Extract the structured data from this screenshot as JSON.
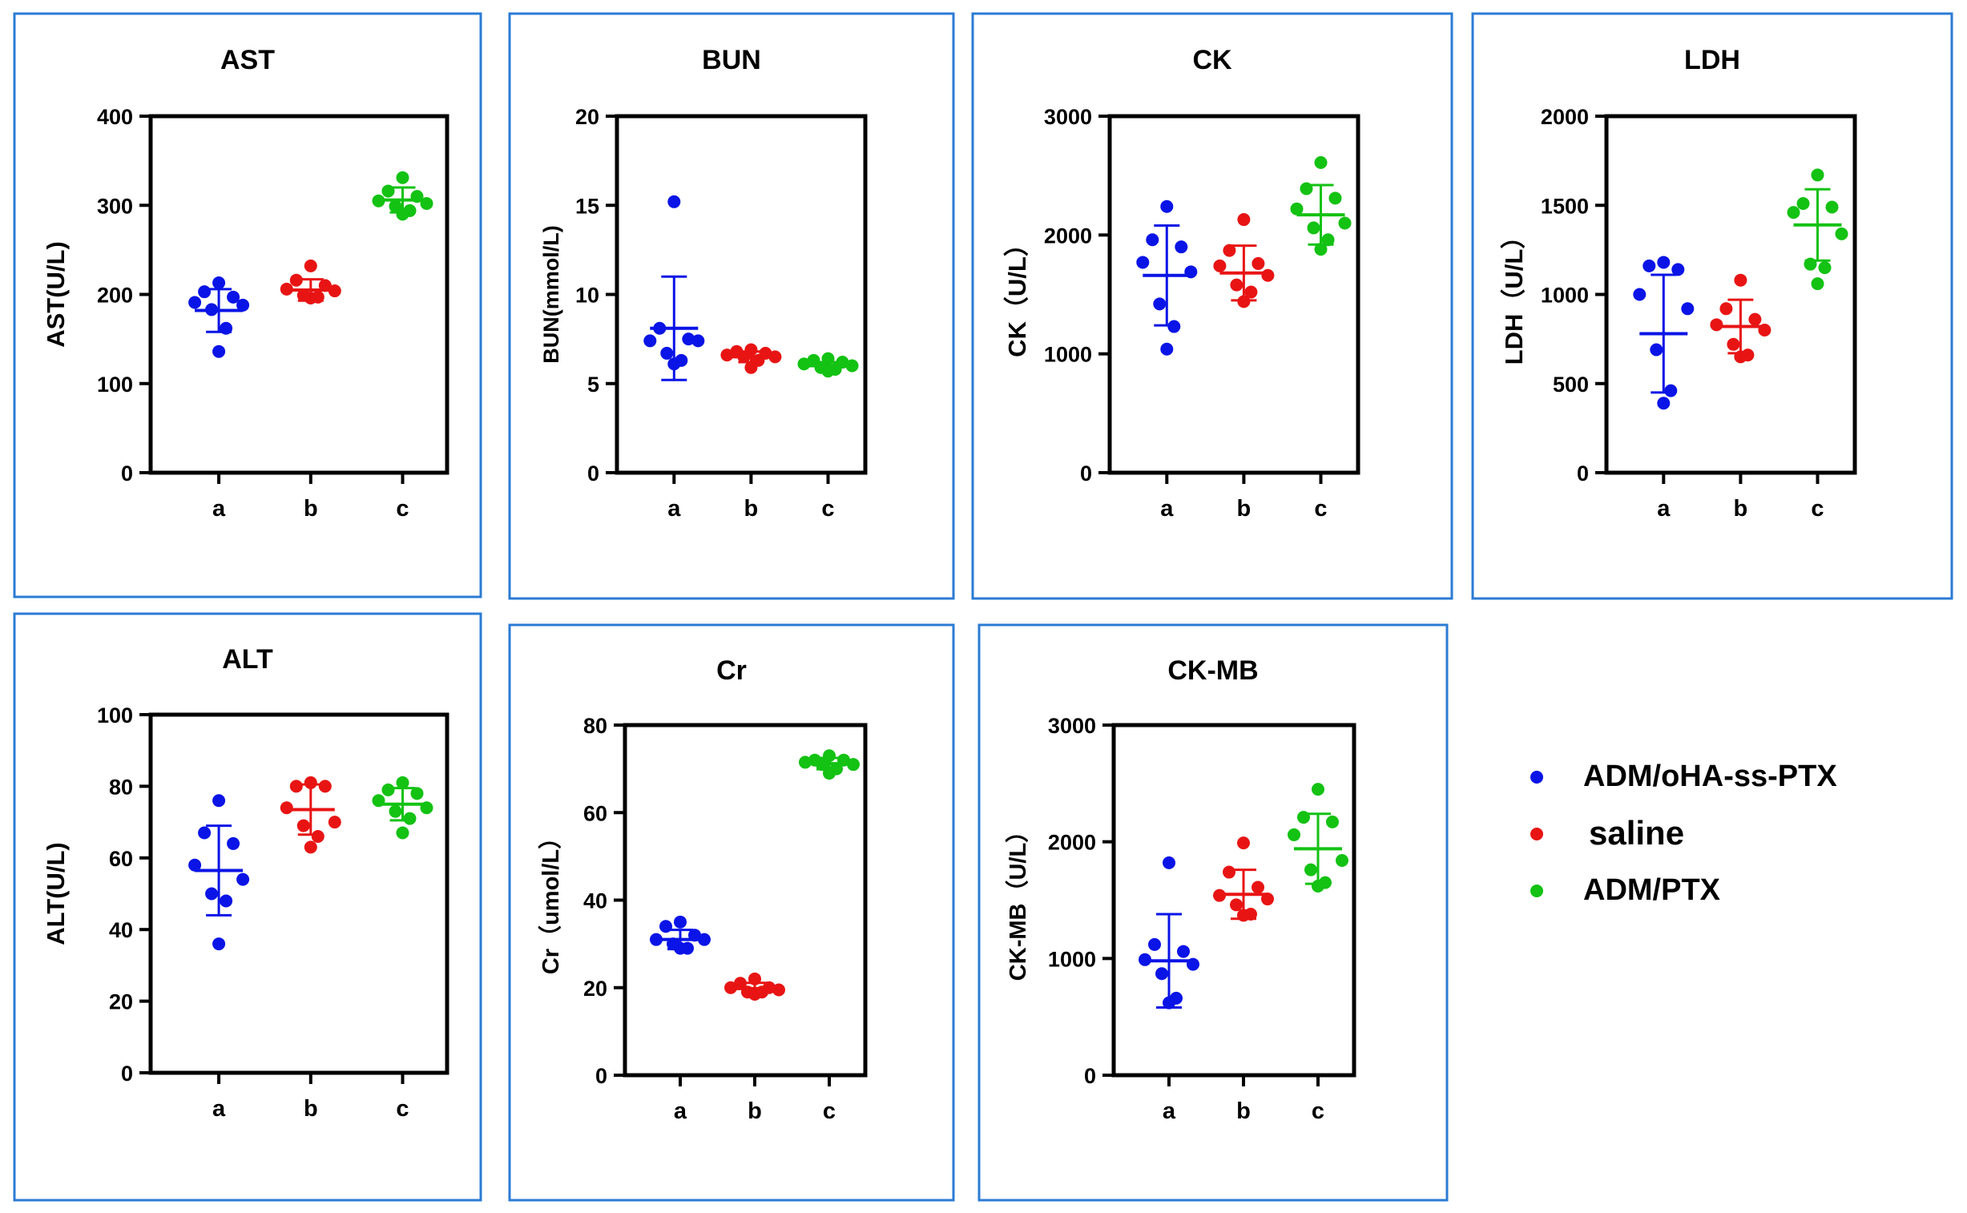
{
  "colors": {
    "a": "#0a14e6",
    "b": "#e81414",
    "c": "#13c213",
    "frame": "#2b7bd4"
  },
  "legend": {
    "items": [
      {
        "key": "a",
        "label": "ADM/oHA-ss-PTX"
      },
      {
        "key": "b",
        "label": "saline"
      },
      {
        "key": "c",
        "label": "ADM/PTX"
      }
    ]
  },
  "chart_data": [
    {
      "id": "ast",
      "type": "scatter",
      "title": "AST",
      "ylabel": "AST(U/L)",
      "categories": [
        "a",
        "b",
        "c"
      ],
      "ylim": [
        0,
        400
      ],
      "yticks": [
        0,
        100,
        200,
        300,
        400
      ],
      "series": [
        {
          "name": "ADM/oHA-ss-PTX",
          "key": "a",
          "values": [
            213,
            203,
            197,
            191,
            188,
            183,
            162,
            136
          ],
          "mean": 182,
          "sd": 24
        },
        {
          "name": "saline",
          "key": "b",
          "values": [
            232,
            216,
            210,
            206,
            204,
            199,
            197,
            196
          ],
          "mean": 205,
          "sd": 12
        },
        {
          "name": "ADM/PTX",
          "key": "c",
          "values": [
            331,
            316,
            310,
            305,
            302,
            299,
            294,
            290
          ],
          "mean": 306,
          "sd": 14
        }
      ]
    },
    {
      "id": "bun",
      "type": "scatter",
      "title": "BUN",
      "ylabel": "BUN(mmol/L)",
      "categories": [
        "a",
        "b",
        "c"
      ],
      "ylim": [
        0,
        20
      ],
      "yticks": [
        0,
        5,
        10,
        15,
        20
      ],
      "series": [
        {
          "name": "ADM/oHA-ss-PTX",
          "key": "a",
          "values": [
            15.2,
            8.1,
            7.5,
            7.4,
            7.4,
            6.7,
            6.3,
            6.1
          ],
          "mean": 8.1,
          "sd": 2.9
        },
        {
          "name": "saline",
          "key": "b",
          "values": [
            6.9,
            6.8,
            6.7,
            6.6,
            6.5,
            6.5,
            6.3,
            5.9
          ],
          "mean": 6.5,
          "sd": 0.3
        },
        {
          "name": "ADM/PTX",
          "key": "c",
          "values": [
            6.4,
            6.3,
            6.2,
            6.1,
            6.0,
            5.9,
            5.8,
            5.7
          ],
          "mean": 6.0,
          "sd": 0.2
        }
      ]
    },
    {
      "id": "ck",
      "type": "scatter",
      "title": "CK",
      "ylabel": "CK（U/L）",
      "categories": [
        "a",
        "b",
        "c"
      ],
      "ylim": [
        0,
        3000
      ],
      "yticks": [
        0,
        1000,
        2000,
        3000
      ],
      "series": [
        {
          "name": "ADM/oHA-ss-PTX",
          "key": "a",
          "values": [
            2240,
            1960,
            1900,
            1770,
            1690,
            1420,
            1230,
            1040
          ],
          "mean": 1660,
          "sd": 420
        },
        {
          "name": "saline",
          "key": "b",
          "values": [
            2130,
            1870,
            1760,
            1740,
            1660,
            1580,
            1520,
            1440
          ],
          "mean": 1680,
          "sd": 230
        },
        {
          "name": "ADM/PTX",
          "key": "c",
          "values": [
            2610,
            2390,
            2310,
            2220,
            2100,
            2060,
            1960,
            1880
          ],
          "mean": 2170,
          "sd": 250
        }
      ]
    },
    {
      "id": "ldh",
      "type": "scatter",
      "title": "LDH",
      "ylabel": "LDH（U/L）",
      "categories": [
        "a",
        "b",
        "c"
      ],
      "ylim": [
        0,
        2000
      ],
      "yticks": [
        0,
        500,
        1000,
        1500,
        2000
      ],
      "series": [
        {
          "name": "ADM/oHA-ss-PTX",
          "key": "a",
          "values": [
            1180,
            1160,
            1140,
            1000,
            920,
            690,
            460,
            390
          ],
          "mean": 780,
          "sd": 330
        },
        {
          "name": "saline",
          "key": "b",
          "values": [
            1080,
            920,
            860,
            830,
            800,
            720,
            660,
            650
          ],
          "mean": 820,
          "sd": 150
        },
        {
          "name": "ADM/PTX",
          "key": "c",
          "values": [
            1670,
            1510,
            1490,
            1460,
            1340,
            1170,
            1150,
            1060
          ],
          "mean": 1390,
          "sd": 200
        }
      ]
    },
    {
      "id": "alt",
      "type": "scatter",
      "title": "ALT",
      "ylabel": "ALT(U/L)",
      "categories": [
        "a",
        "b",
        "c"
      ],
      "ylim": [
        0,
        100
      ],
      "yticks": [
        0,
        20,
        40,
        60,
        80,
        100
      ],
      "series": [
        {
          "name": "ADM/oHA-ss-PTX",
          "key": "a",
          "values": [
            76,
            67,
            64,
            58,
            54,
            50,
            48,
            36
          ],
          "mean": 56.5,
          "sd": 12.5
        },
        {
          "name": "saline",
          "key": "b",
          "values": [
            81,
            80,
            80,
            74,
            70,
            69,
            66,
            63
          ],
          "mean": 73.5,
          "sd": 7
        },
        {
          "name": "ADM/PTX",
          "key": "c",
          "values": [
            81,
            79,
            78,
            76,
            74,
            73,
            71,
            67
          ],
          "mean": 75,
          "sd": 4.5
        }
      ]
    },
    {
      "id": "cr",
      "type": "scatter",
      "title": "Cr",
      "ylabel": "Cr（umol/L）",
      "categories": [
        "a",
        "b",
        "c"
      ],
      "ylim": [
        0,
        80
      ],
      "yticks": [
        0,
        20,
        40,
        60,
        80
      ],
      "series": [
        {
          "name": "ADM/oHA-ss-PTX",
          "key": "a",
          "values": [
            35,
            34,
            32,
            31,
            31,
            30,
            29,
            29
          ],
          "mean": 31,
          "sd": 2.2
        },
        {
          "name": "saline",
          "key": "b",
          "values": [
            22,
            21,
            20,
            20,
            19.5,
            19,
            19,
            18.5
          ],
          "mean": 19.8,
          "sd": 1.3
        },
        {
          "name": "ADM/PTX",
          "key": "c",
          "values": [
            73,
            72,
            72,
            71.5,
            71,
            71,
            70,
            69
          ],
          "mean": 71.2,
          "sd": 1.3
        }
      ]
    },
    {
      "id": "ckmb",
      "type": "scatter",
      "title": "CK-MB",
      "ylabel": "CK-MB（U/L）",
      "categories": [
        "a",
        "b",
        "c"
      ],
      "ylim": [
        0,
        3000
      ],
      "yticks": [
        0,
        1000,
        2000,
        3000
      ],
      "series": [
        {
          "name": "ADM/oHA-ss-PTX",
          "key": "a",
          "values": [
            1820,
            1120,
            1060,
            990,
            950,
            870,
            660,
            620
          ],
          "mean": 980,
          "sd": 400
        },
        {
          "name": "saline",
          "key": "b",
          "values": [
            1990,
            1740,
            1610,
            1540,
            1510,
            1460,
            1380,
            1370
          ],
          "mean": 1550,
          "sd": 210
        },
        {
          "name": "ADM/PTX",
          "key": "c",
          "values": [
            2450,
            2210,
            2170,
            2060,
            1840,
            1760,
            1650,
            1620
          ],
          "mean": 1940,
          "sd": 300
        }
      ]
    }
  ]
}
